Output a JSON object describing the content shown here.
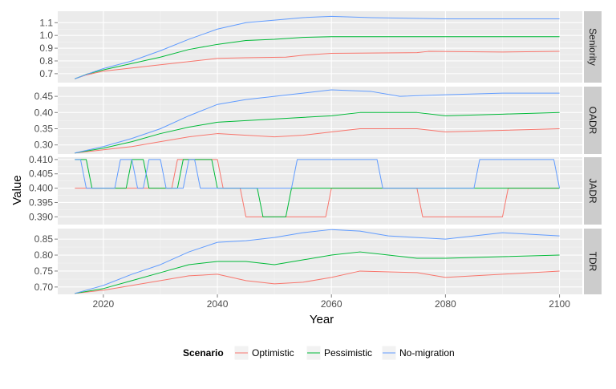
{
  "chart_data": {
    "type": "line",
    "xlabel": "Year",
    "ylabel": "Value",
    "xlim": [
      2012,
      2104
    ],
    "x_ticks": [
      2020,
      2040,
      2060,
      2080,
      2100
    ],
    "x_tick_labels": [
      "2020",
      "2040",
      "2060",
      "2080",
      "2100"
    ],
    "grid": true,
    "legend": {
      "title": "Scenario",
      "position": "bottom",
      "entries": [
        "Optimistic",
        "Pessimistic",
        "No-migration"
      ],
      "colors": [
        "#F8766D",
        "#00BA38",
        "#619CFF"
      ]
    },
    "panels": [
      {
        "strip": "Seniority",
        "ylim": [
          0.63,
          1.19
        ],
        "y_ticks": [
          0.7,
          0.8,
          0.9,
          1.0,
          1.1
        ],
        "y_tick_labels": [
          "0.7",
          "0.8",
          "0.9",
          "1.0",
          "1.1"
        ],
        "series": [
          {
            "name": "Optimistic",
            "color": "#F8766D",
            "points": [
              [
                2015,
                0.66
              ],
              [
                2017,
                0.69
              ],
              [
                2020,
                0.72
              ],
              [
                2025,
                0.745
              ],
              [
                2030,
                0.77
              ],
              [
                2035,
                0.795
              ],
              [
                2040,
                0.82
              ],
              [
                2045,
                0.825
              ],
              [
                2052,
                0.83
              ],
              [
                2055,
                0.845
              ],
              [
                2060,
                0.86
              ],
              [
                2075,
                0.865
              ],
              [
                2077,
                0.875
              ],
              [
                2090,
                0.87
              ],
              [
                2100,
                0.875
              ]
            ]
          },
          {
            "name": "Pessimistic",
            "color": "#00BA38",
            "points": [
              [
                2015,
                0.66
              ],
              [
                2017,
                0.695
              ],
              [
                2020,
                0.73
              ],
              [
                2025,
                0.78
              ],
              [
                2030,
                0.83
              ],
              [
                2035,
                0.89
              ],
              [
                2040,
                0.93
              ],
              [
                2045,
                0.96
              ],
              [
                2050,
                0.97
              ],
              [
                2055,
                0.985
              ],
              [
                2060,
                0.99
              ],
              [
                2100,
                0.99
              ]
            ]
          },
          {
            "name": "No-migration",
            "color": "#619CFF",
            "points": [
              [
                2015,
                0.66
              ],
              [
                2018,
                0.71
              ],
              [
                2020,
                0.74
              ],
              [
                2025,
                0.8
              ],
              [
                2030,
                0.88
              ],
              [
                2035,
                0.97
              ],
              [
                2040,
                1.05
              ],
              [
                2045,
                1.1
              ],
              [
                2050,
                1.12
              ],
              [
                2055,
                1.14
              ],
              [
                2060,
                1.15
              ],
              [
                2067,
                1.14
              ],
              [
                2080,
                1.13
              ],
              [
                2100,
                1.13
              ]
            ]
          }
        ]
      },
      {
        "strip": "OADR",
        "ylim": [
          0.272,
          0.48
        ],
        "y_ticks": [
          0.3,
          0.35,
          0.4,
          0.45
        ],
        "y_tick_labels": [
          "0.30",
          "0.35",
          "0.40",
          "0.45"
        ],
        "series": [
          {
            "name": "Optimistic",
            "color": "#F8766D",
            "points": [
              [
                2015,
                0.275
              ],
              [
                2020,
                0.285
              ],
              [
                2025,
                0.295
              ],
              [
                2030,
                0.31
              ],
              [
                2035,
                0.325
              ],
              [
                2040,
                0.335
              ],
              [
                2045,
                0.33
              ],
              [
                2050,
                0.325
              ],
              [
                2055,
                0.33
              ],
              [
                2060,
                0.34
              ],
              [
                2065,
                0.35
              ],
              [
                2075,
                0.35
              ],
              [
                2080,
                0.34
              ],
              [
                2090,
                0.345
              ],
              [
                2100,
                0.35
              ]
            ]
          },
          {
            "name": "Pessimistic",
            "color": "#00BA38",
            "points": [
              [
                2015,
                0.275
              ],
              [
                2020,
                0.29
              ],
              [
                2025,
                0.31
              ],
              [
                2030,
                0.335
              ],
              [
                2035,
                0.355
              ],
              [
                2040,
                0.37
              ],
              [
                2045,
                0.375
              ],
              [
                2050,
                0.38
              ],
              [
                2055,
                0.385
              ],
              [
                2060,
                0.39
              ],
              [
                2065,
                0.4
              ],
              [
                2075,
                0.4
              ],
              [
                2080,
                0.39
              ],
              [
                2090,
                0.395
              ],
              [
                2100,
                0.4
              ]
            ]
          },
          {
            "name": "No-migration",
            "color": "#619CFF",
            "points": [
              [
                2015,
                0.275
              ],
              [
                2020,
                0.295
              ],
              [
                2025,
                0.32
              ],
              [
                2030,
                0.35
              ],
              [
                2035,
                0.39
              ],
              [
                2040,
                0.425
              ],
              [
                2045,
                0.44
              ],
              [
                2050,
                0.45
              ],
              [
                2055,
                0.46
              ],
              [
                2060,
                0.47
              ],
              [
                2067,
                0.465
              ],
              [
                2072,
                0.45
              ],
              [
                2080,
                0.455
              ],
              [
                2090,
                0.46
              ],
              [
                2100,
                0.46
              ]
            ]
          }
        ]
      },
      {
        "strip": "JADR",
        "ylim": [
          0.3873,
          0.4108
        ],
        "y_ticks": [
          0.39,
          0.395,
          0.4,
          0.405,
          0.41
        ],
        "y_tick_labels": [
          "0.390",
          "0.395",
          "0.400",
          "0.405",
          "0.410"
        ],
        "series": [
          {
            "name": "Optimistic",
            "color": "#F8766D",
            "points": [
              [
                2015,
                0.4
              ],
              [
                2032,
                0.4
              ],
              [
                2033,
                0.41
              ],
              [
                2040,
                0.41
              ],
              [
                2041,
                0.4
              ],
              [
                2044,
                0.4
              ],
              [
                2045,
                0.39
              ],
              [
                2059,
                0.39
              ],
              [
                2060,
                0.4
              ],
              [
                2075,
                0.4
              ],
              [
                2076,
                0.39
              ],
              [
                2090,
                0.39
              ],
              [
                2091,
                0.4
              ],
              [
                2100,
                0.4
              ]
            ]
          },
          {
            "name": "Pessimistic",
            "color": "#00BA38",
            "points": [
              [
                2015,
                0.41
              ],
              [
                2017,
                0.41
              ],
              [
                2018,
                0.4
              ],
              [
                2024,
                0.4
              ],
              [
                2025,
                0.41
              ],
              [
                2027,
                0.41
              ],
              [
                2028,
                0.4
              ],
              [
                2033,
                0.4
              ],
              [
                2034,
                0.41
              ],
              [
                2039,
                0.41
              ],
              [
                2040,
                0.4
              ],
              [
                2047,
                0.4
              ],
              [
                2048,
                0.39
              ],
              [
                2052,
                0.39
              ],
              [
                2053,
                0.4
              ],
              [
                2100,
                0.4
              ]
            ]
          },
          {
            "name": "No-migration",
            "color": "#619CFF",
            "points": [
              [
                2015,
                0.41
              ],
              [
                2016,
                0.41
              ],
              [
                2017,
                0.4
              ],
              [
                2022,
                0.4
              ],
              [
                2023,
                0.41
              ],
              [
                2025,
                0.41
              ],
              [
                2026,
                0.4
              ],
              [
                2027,
                0.4
              ],
              [
                2028,
                0.41
              ],
              [
                2030,
                0.41
              ],
              [
                2031,
                0.4
              ],
              [
                2034,
                0.4
              ],
              [
                2035,
                0.41
              ],
              [
                2036,
                0.41
              ],
              [
                2037,
                0.4
              ],
              [
                2053,
                0.4
              ],
              [
                2054,
                0.41
              ],
              [
                2068,
                0.41
              ],
              [
                2069,
                0.4
              ],
              [
                2085,
                0.4
              ],
              [
                2086,
                0.41
              ],
              [
                2099,
                0.41
              ],
              [
                2100,
                0.4
              ]
            ]
          }
        ]
      },
      {
        "strip": "TDR",
        "ylim": [
          0.677,
          0.883
        ],
        "y_ticks": [
          0.7,
          0.75,
          0.8,
          0.85
        ],
        "y_tick_labels": [
          "0.70",
          "0.75",
          "0.80",
          "0.85"
        ],
        "series": [
          {
            "name": "Optimistic",
            "color": "#F8766D",
            "points": [
              [
                2015,
                0.68
              ],
              [
                2020,
                0.69
              ],
              [
                2025,
                0.705
              ],
              [
                2030,
                0.72
              ],
              [
                2035,
                0.735
              ],
              [
                2040,
                0.74
              ],
              [
                2045,
                0.72
              ],
              [
                2050,
                0.71
              ],
              [
                2055,
                0.715
              ],
              [
                2060,
                0.73
              ],
              [
                2065,
                0.75
              ],
              [
                2075,
                0.745
              ],
              [
                2080,
                0.73
              ],
              [
                2090,
                0.74
              ],
              [
                2100,
                0.75
              ]
            ]
          },
          {
            "name": "Pessimistic",
            "color": "#00BA38",
            "points": [
              [
                2015,
                0.68
              ],
              [
                2020,
                0.695
              ],
              [
                2025,
                0.72
              ],
              [
                2030,
                0.745
              ],
              [
                2035,
                0.77
              ],
              [
                2040,
                0.78
              ],
              [
                2045,
                0.78
              ],
              [
                2050,
                0.77
              ],
              [
                2055,
                0.785
              ],
              [
                2060,
                0.8
              ],
              [
                2065,
                0.81
              ],
              [
                2070,
                0.8
              ],
              [
                2075,
                0.79
              ],
              [
                2080,
                0.79
              ],
              [
                2090,
                0.795
              ],
              [
                2100,
                0.8
              ]
            ]
          },
          {
            "name": "No-migration",
            "color": "#619CFF",
            "points": [
              [
                2015,
                0.68
              ],
              [
                2020,
                0.705
              ],
              [
                2025,
                0.74
              ],
              [
                2030,
                0.77
              ],
              [
                2035,
                0.81
              ],
              [
                2040,
                0.84
              ],
              [
                2045,
                0.845
              ],
              [
                2050,
                0.855
              ],
              [
                2055,
                0.87
              ],
              [
                2060,
                0.88
              ],
              [
                2065,
                0.875
              ],
              [
                2070,
                0.86
              ],
              [
                2080,
                0.85
              ],
              [
                2085,
                0.86
              ],
              [
                2090,
                0.87
              ],
              [
                2100,
                0.86
              ]
            ]
          }
        ]
      }
    ]
  }
}
